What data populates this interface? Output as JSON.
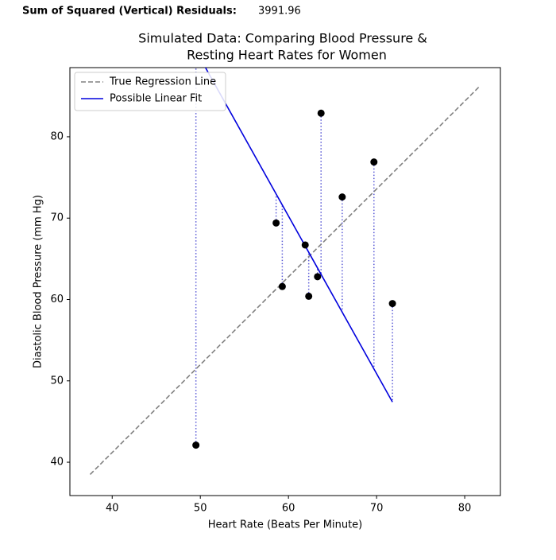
{
  "chart_data": {
    "type": "scatter",
    "annotation_label": "Sum of Squared (Vertical) Residuals:",
    "annotation_value": 3991.96,
    "title": [
      "Simulated Data: Comparing Blood Pressure &",
      "Resting Heart Rates for Women"
    ],
    "x_label": "Heart Rate (Beats Per Minute)",
    "y_label": "Diastolic Blood Pressure (mm Hg)",
    "xlim": [
      35.2,
      84.05
    ],
    "ylim": [
      35.9,
      88.5
    ],
    "xticks": [
      40,
      50,
      60,
      70,
      80
    ],
    "yticks": [
      40,
      50,
      60,
      70,
      80
    ],
    "grid": false,
    "legend": "upper left",
    "points": {
      "color": "#000000",
      "x": [
        49.5,
        58.6,
        59.3,
        61.9,
        62.3,
        63.3,
        63.7,
        66.1,
        69.7,
        71.8
      ],
      "values": [
        42.1,
        69.4,
        61.6,
        66.7,
        60.4,
        62.8,
        82.9,
        72.6,
        76.9,
        59.5
      ]
    },
    "residual_color": "#5a5ad6",
    "series": [
      {
        "name": "True Regression Line",
        "color": "#808080",
        "dash": true,
        "x": [
          37.5,
          81.6
        ],
        "values": [
          38.5,
          86.1
        ]
      },
      {
        "name": "Possible Linear Fit",
        "color": "#0000dd",
        "dash": false,
        "x": [
          49.5,
          71.8
        ],
        "values": [
          90.6,
          47.4
        ]
      }
    ]
  }
}
